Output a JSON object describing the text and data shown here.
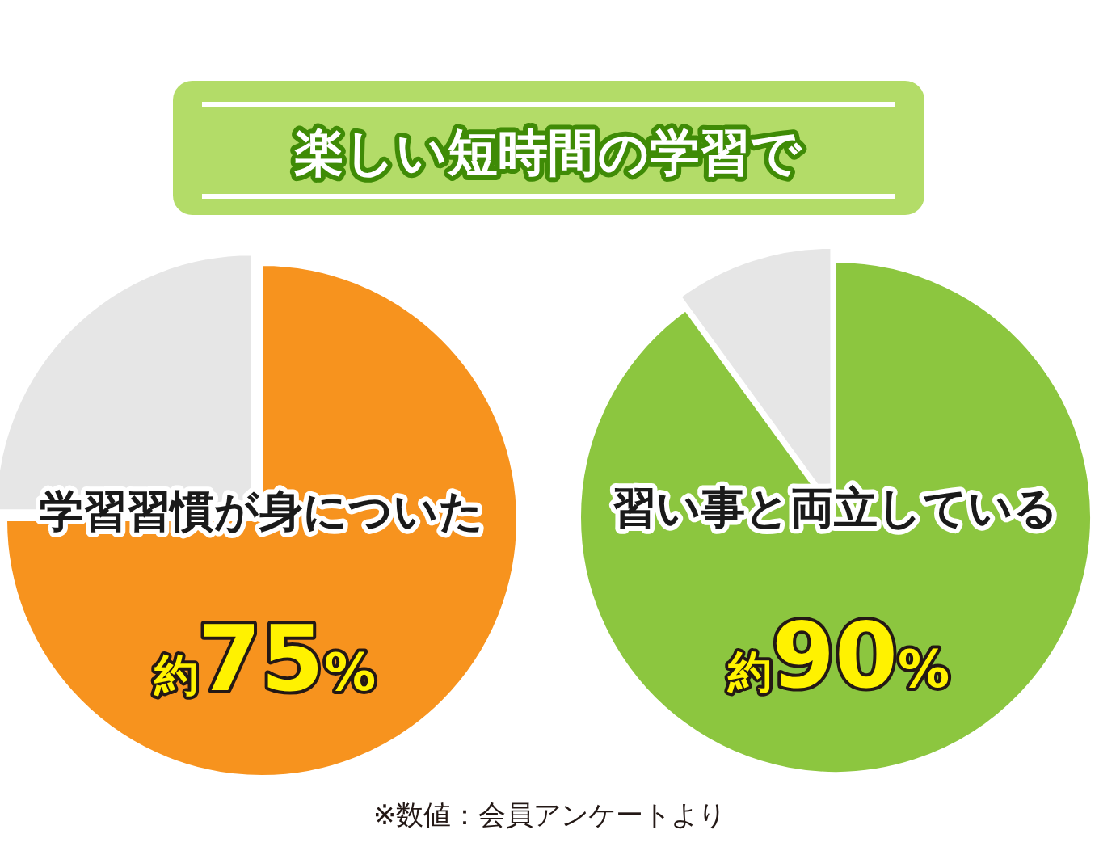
{
  "chart_data": [
    {
      "type": "pie",
      "title": "楽しい短時間の学習で",
      "categories": [
        "学習習慣が身についた",
        null
      ],
      "values": [
        75,
        25
      ],
      "colors": [
        "#f7931e",
        "#e6e6e6"
      ],
      "value_labels": [
        "約75%",
        null
      ]
    },
    {
      "type": "pie",
      "categories": [
        "習い事と両立している",
        null
      ],
      "values": [
        90,
        10
      ],
      "colors": [
        "#8cc63f",
        "#e6e6e6"
      ],
      "value_labels": [
        "約90%",
        null
      ],
      "annotations": [
        "※数値：会員アンケートより"
      ]
    }
  ]
}
